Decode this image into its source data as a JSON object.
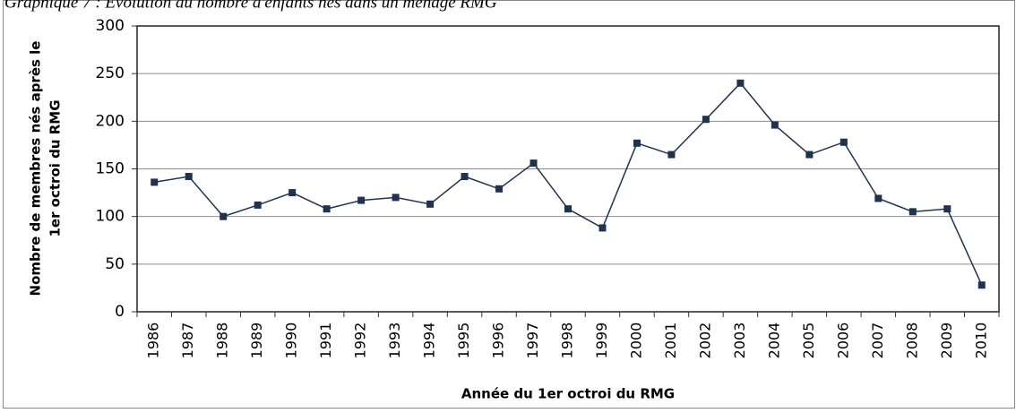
{
  "chart_data": {
    "type": "line",
    "title": "Graphique 7 : Évolution du nombre d'enfants nés dans un ménage RMG",
    "x_label": "Année du 1er octroi du RMG",
    "y_label": [
      "Nombre de membres nés après le",
      "1er octroi du RMG"
    ],
    "categories": [
      "1986",
      "1987",
      "1988",
      "1989",
      "1990",
      "1991",
      "1992",
      "1993",
      "1994",
      "1995",
      "1996",
      "1997",
      "1998",
      "1999",
      "2000",
      "2001",
      "2002",
      "2003",
      "2004",
      "2005",
      "2006",
      "2007",
      "2008",
      "2009",
      "2010"
    ],
    "values": [
      136,
      142,
      100,
      112,
      125,
      108,
      117,
      120,
      113,
      142,
      129,
      156,
      108,
      88,
      177,
      165,
      202,
      240,
      196,
      165,
      178,
      119,
      105,
      108,
      28
    ],
    "color": "#1f3350",
    "ylim": [
      0,
      300
    ],
    "yticks": [
      0,
      50,
      100,
      150,
      200,
      250,
      300
    ],
    "grid": true
  }
}
